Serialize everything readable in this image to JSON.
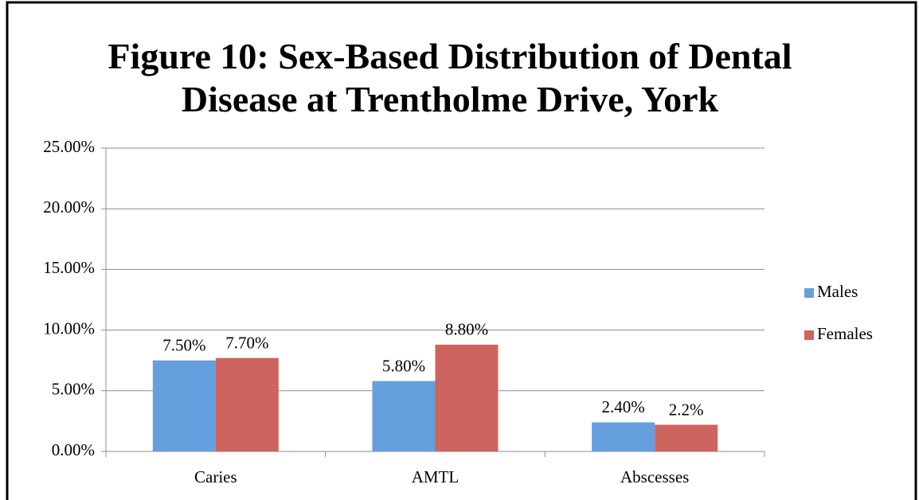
{
  "chart_data": {
    "type": "bar",
    "title": "Figure 10: Sex-Based Distribution of Dental Disease at Trentholme Drive, York",
    "categories": [
      "Caries",
      "AMTL",
      "Abscesses"
    ],
    "series": [
      {
        "name": "Males",
        "color": "#659fdd",
        "values": [
          7.5,
          5.8,
          2.4
        ],
        "value_labels": [
          "7.50%",
          "5.80%",
          "2.40%"
        ]
      },
      {
        "name": "Females",
        "color": "#cd645e",
        "values": [
          7.7,
          8.8,
          2.2
        ],
        "value_labels": [
          "7.70%",
          "8.80%",
          "2.2%"
        ]
      }
    ],
    "ylim": [
      0,
      25
    ],
    "yticks": [
      {
        "value": 0,
        "label": "0.00%"
      },
      {
        "value": 5,
        "label": "5.00%"
      },
      {
        "value": 10,
        "label": "10.00%"
      },
      {
        "value": 15,
        "label": "15.00%"
      },
      {
        "value": 20,
        "label": "20.00%"
      },
      {
        "value": 25,
        "label": "25.00%"
      }
    ],
    "grid": true,
    "legend": "right"
  }
}
